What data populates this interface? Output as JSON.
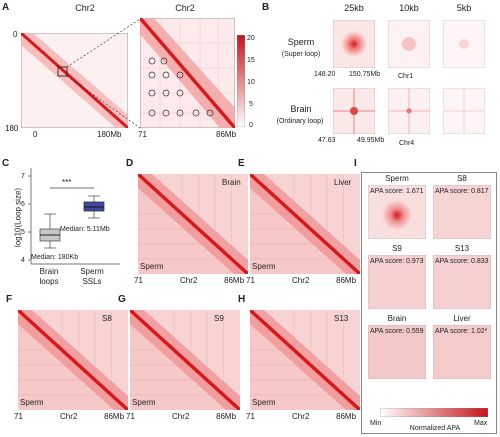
{
  "panels": {
    "A": {
      "letter": "A",
      "left_map": {
        "title": "Chr2",
        "tick_top": "0",
        "tick_bottom": "180",
        "x_start": "0",
        "x_end": "180Mb"
      },
      "zoom_map": {
        "title": "Chr2",
        "x_start": "71",
        "x_end": "86Mb"
      },
      "colorbar_ticks": [
        "20",
        "15",
        "10",
        "5",
        "0"
      ]
    },
    "B": {
      "letter": "B",
      "columns": [
        "25kb",
        "10kb",
        "5kb"
      ],
      "rows": [
        {
          "label": "Sperm",
          "sublabel": "(Super loop)",
          "coord_left": "148.20",
          "coord_right": "150.75Mb",
          "chrom": "Chr1"
        },
        {
          "label": "Brain",
          "sublabel": "(Ordinary loop)",
          "coord_left": "47.63",
          "coord_right": "49.95Mb",
          "chrom": "Chr4"
        }
      ]
    },
    "C": {
      "letter": "C",
      "ylabel": "log10(Loop size)",
      "yticks": [
        "7",
        "6",
        "5",
        "4"
      ],
      "significance": "***",
      "median_brain": "Median: 180Kb",
      "median_sperm": "Median: 5.11Mb",
      "categories": [
        "Brain loops",
        "Sperm SSLs"
      ],
      "box_colors": [
        "#c8c8c8",
        "#3e4a9e"
      ]
    },
    "D": {
      "letter": "D",
      "top_label": "Brain",
      "bottom_label": "Sperm",
      "x_start": "71",
      "x_mid": "Chr2",
      "x_end": "86Mb"
    },
    "E": {
      "letter": "E",
      "top_label": "Liver",
      "bottom_label": "Sperm",
      "x_start": "71",
      "x_mid": "Chr2",
      "x_end": "86Mb"
    },
    "F": {
      "letter": "F",
      "top_label": "S8",
      "bottom_label": "Sperm",
      "x_start": "71",
      "x_mid": "Chr2",
      "x_end": "86Mb"
    },
    "G": {
      "letter": "G",
      "top_label": "S9",
      "bottom_label": "Sperm",
      "x_start": "71",
      "x_mid": "Chr2",
      "x_end": "86Mb"
    },
    "H": {
      "letter": "H",
      "top_label": "S13",
      "bottom_label": "Sperm",
      "x_start": "71",
      "x_mid": "Chr2",
      "x_end": "86Mb"
    },
    "I": {
      "letter": "I",
      "tiles": [
        {
          "name": "Sperm",
          "score": "APA score: 1.671"
        },
        {
          "name": "S8",
          "score": "APA score: 0.817"
        },
        {
          "name": "S9",
          "score": "APA score: 0.973"
        },
        {
          "name": "S13",
          "score": "APA score: 0.833"
        },
        {
          "name": "Brain",
          "score": "APA score: 0.559"
        },
        {
          "name": "Liver",
          "score": "APA score: 1.02*"
        }
      ],
      "colorbar_min": "Min",
      "colorbar_max": "Max",
      "colorbar_label": "Normalized APA"
    }
  },
  "colors": {
    "heat": "#d7191c",
    "heat_light": "#fbe3e3",
    "box_sperm": "#3e4a9e"
  }
}
